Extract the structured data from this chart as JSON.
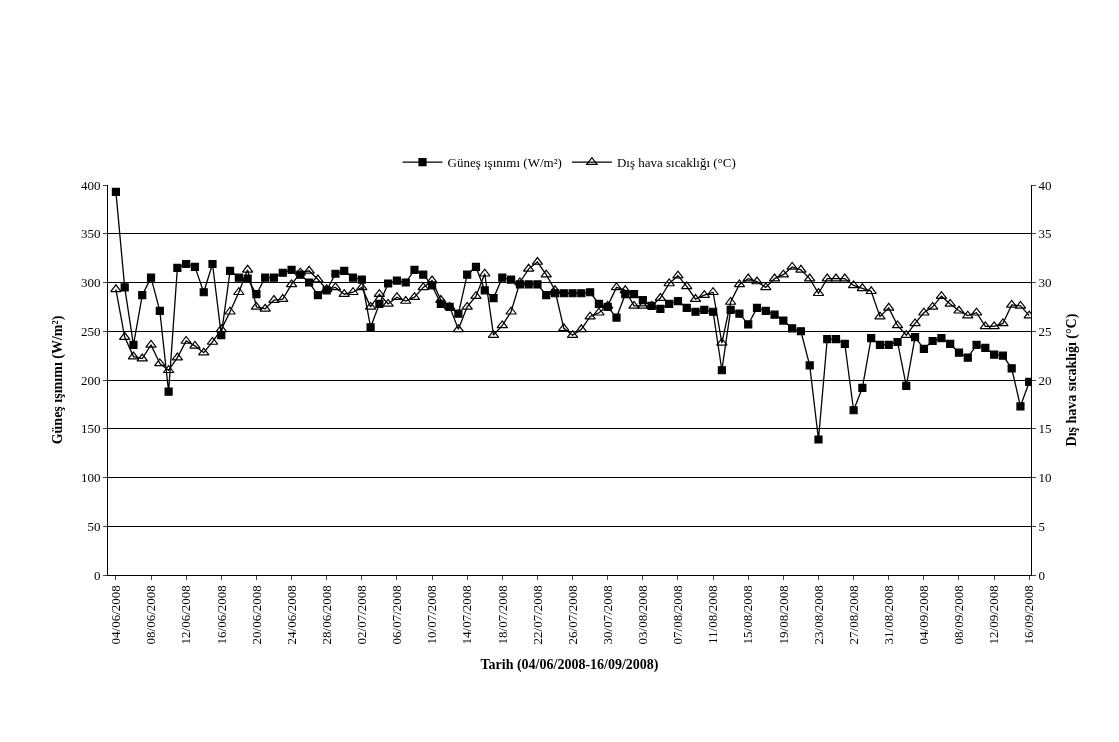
{
  "chart_data": {
    "type": "line",
    "xlabel": "Tarih (04/06/2008-16/09/2008)",
    "ylabel": "Güneş ışınımı (W/m²)",
    "y2label": "Dış hava sıcaklığı (°C)",
    "categories": [
      "04/06/2008",
      null,
      null,
      null,
      "08/06/2008",
      null,
      null,
      null,
      "12/06/2008",
      null,
      null,
      null,
      "16/06/2008",
      null,
      null,
      null,
      "20/06/2008",
      null,
      null,
      null,
      "24/06/2008",
      null,
      null,
      null,
      "28/06/2008",
      null,
      null,
      null,
      "02/07/2008",
      null,
      null,
      null,
      "06/07/2008",
      null,
      null,
      null,
      "10/07/2008",
      null,
      null,
      null,
      "14/07/2008",
      null,
      null,
      null,
      "18/07/2008",
      null,
      null,
      null,
      "22/07/2008",
      null,
      null,
      null,
      "26/07/2008",
      null,
      null,
      null,
      "30/07/2008",
      null,
      null,
      null,
      "03/08/2008",
      null,
      null,
      null,
      "07/08/2008",
      null,
      null,
      null,
      "11/08/2008",
      null,
      null,
      null,
      "15/08/2008",
      null,
      null,
      null,
      "19/08/2008",
      null,
      null,
      null,
      "23/08/2008",
      null,
      null,
      null,
      "27/08/2008",
      null,
      null,
      null,
      "31/08/2008",
      null,
      null,
      null,
      "04/09/2008",
      null,
      null,
      null,
      "08/09/2008",
      null,
      null,
      null,
      "12/09/2008",
      null,
      null,
      null,
      "16/09/2008"
    ],
    "series": [
      {
        "name": "Güneş ışınımı (W/m²)",
        "color": "#000000",
        "marker": "square",
        "values": [
          393,
          295,
          236,
          287,
          305,
          271,
          188,
          315,
          319,
          316,
          290,
          319,
          246,
          312,
          305,
          304,
          288,
          305,
          305,
          310,
          313,
          308,
          300,
          287,
          292,
          309,
          312,
          305,
          303,
          254,
          278,
          299,
          302,
          300,
          313,
          308,
          297,
          278,
          275,
          268,
          308,
          316,
          292,
          284,
          305,
          303,
          298,
          298,
          298,
          287,
          289,
          289,
          289,
          289,
          290,
          278,
          275,
          264,
          288,
          288,
          282,
          276,
          273,
          278,
          281,
          274,
          270,
          272,
          270,
          210,
          272,
          268,
          257,
          274,
          271,
          267,
          261,
          253,
          250,
          215,
          139,
          242,
          242,
          237,
          169,
          192,
          243,
          236,
          236,
          239,
          194,
          244,
          232,
          240,
          243,
          237,
          228,
          223,
          236,
          233,
          226,
          225,
          212,
          173,
          198
        ]
      },
      {
        "name": "Dış hava sıcaklığı (°C)",
        "color": "#000000",
        "marker": "triangle",
        "axis": "y2",
        "values": [
          29.3,
          24.4,
          22.4,
          22.2,
          23.6,
          21.7,
          21.0,
          22.3,
          24.0,
          23.5,
          22.8,
          23.9,
          25.2,
          27.0,
          29.0,
          31.3,
          27.5,
          27.3,
          28.2,
          28.3,
          29.8,
          31.0,
          31.2,
          30.3,
          29.3,
          29.5,
          28.8,
          29.0,
          29.5,
          27.5,
          28.8,
          27.8,
          28.5,
          28.1,
          28.5,
          29.5,
          30.2,
          28.2,
          27.5,
          25.2,
          27.5,
          28.6,
          30.9,
          24.6,
          25.6,
          27.0,
          30.0,
          31.4,
          32.1,
          30.8,
          29.2,
          25.3,
          24.6,
          25.2,
          26.5,
          26.9,
          27.6,
          29.5,
          29.2,
          27.6,
          27.6,
          27.6,
          28.4,
          29.9,
          30.7,
          29.6,
          28.3,
          28.7,
          29.0,
          23.8,
          28.0,
          29.8,
          30.4,
          30.1,
          29.5,
          30.4,
          30.8,
          31.6,
          31.3,
          30.4,
          28.9,
          30.4,
          30.4,
          30.4,
          29.7,
          29.4,
          29.1,
          26.5,
          27.4,
          25.6,
          24.6,
          25.8,
          26.9,
          27.5,
          28.6,
          27.8,
          27.1,
          26.6,
          26.9,
          25.5,
          25.5,
          25.8,
          27.7,
          27.6,
          26.6
        ]
      }
    ],
    "ylim": [
      0,
      400
    ],
    "yticks": [
      0,
      50,
      100,
      150,
      200,
      250,
      300,
      350,
      400
    ],
    "y2lim": [
      0,
      40
    ],
    "y2ticks": [
      0,
      5,
      10,
      15,
      20,
      25,
      30,
      35,
      40
    ],
    "grid": "y",
    "legend": "top",
    "line_style": "solid"
  }
}
